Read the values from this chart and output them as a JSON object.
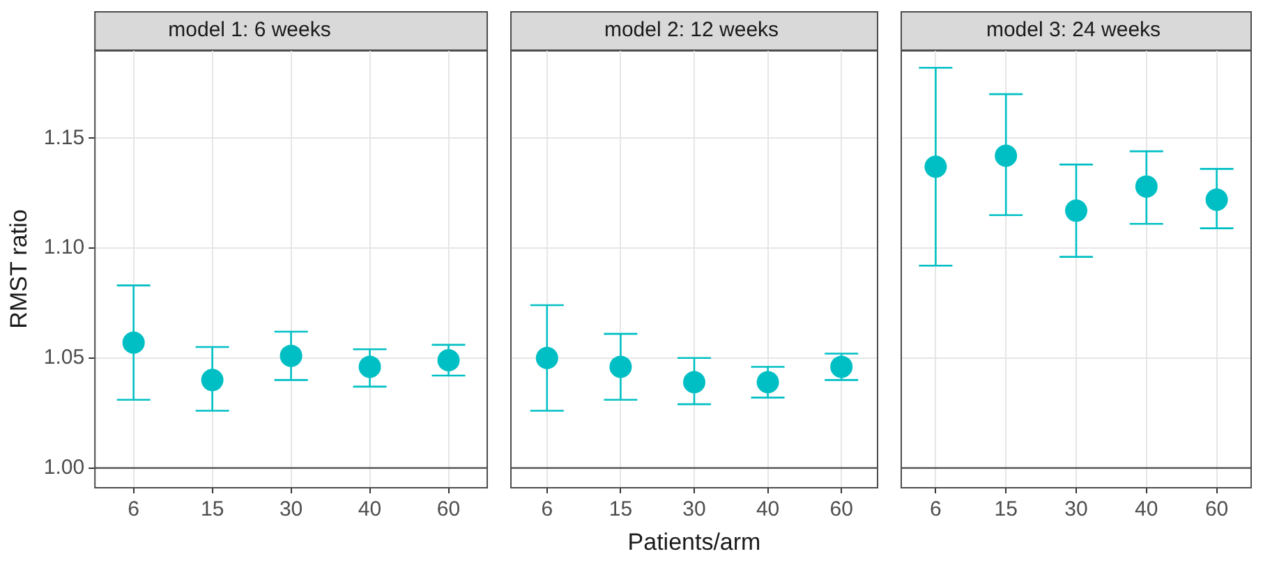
{
  "chart_data": [
    {
      "type": "scatter",
      "title": "model 1: 6 weeks",
      "ylabel": "RMST ratio",
      "categories": [
        "6",
        "15",
        "30",
        "40",
        "60"
      ],
      "series": [
        {
          "color": "#00bfc4",
          "values": [
            1.057,
            1.04,
            1.051,
            1.046,
            1.049
          ],
          "errors": [
            [
              1.031,
              1.083
            ],
            [
              1.026,
              1.055
            ],
            [
              1.04,
              1.062
            ],
            [
              1.037,
              1.054
            ],
            [
              1.042,
              1.056
            ]
          ]
        }
      ],
      "ylim": [
        0.991,
        1.19
      ],
      "yticks": [
        {
          "value": 1.0,
          "label": "1.00"
        },
        {
          "value": 1.05,
          "label": "1.05"
        },
        {
          "value": 1.1,
          "label": "1.10"
        },
        {
          "value": 1.15,
          "label": "1.15"
        }
      ],
      "ref_lines": [
        {
          "axis": "y",
          "value": 1,
          "color": "#4d4d4d"
        }
      ],
      "grid": true,
      "marker": "circle",
      "legend": false
    },
    {
      "type": "scatter",
      "title": "model 2: 12 weeks",
      "xlabel": "Patients/arm",
      "categories": [
        "6",
        "15",
        "30",
        "40",
        "60"
      ],
      "series": [
        {
          "color": "#00bfc4",
          "values": [
            1.05,
            1.046,
            1.039,
            1.039,
            1.046
          ],
          "errors": [
            [
              1.026,
              1.074
            ],
            [
              1.031,
              1.061
            ],
            [
              1.029,
              1.05
            ],
            [
              1.032,
              1.046
            ],
            [
              1.04,
              1.052
            ]
          ]
        }
      ],
      "ylim": [
        0.991,
        1.19
      ],
      "yticks": [
        1,
        1.05,
        1.1,
        1.15
      ],
      "ref_lines": [
        {
          "axis": "y",
          "value": 1,
          "color": "#4d4d4d"
        }
      ],
      "grid": true,
      "marker": "circle",
      "legend": false,
      "tick_labels": "x"
    },
    {
      "type": "scatter",
      "title": "model 3: 24 weeks",
      "categories": [
        "6",
        "15",
        "30",
        "40",
        "60"
      ],
      "series": [
        {
          "color": "#00bfc4",
          "values": [
            1.137,
            1.142,
            1.117,
            1.128,
            1.122
          ],
          "errors": [
            [
              1.092,
              1.182
            ],
            [
              1.115,
              1.17
            ],
            [
              1.096,
              1.138
            ],
            [
              1.111,
              1.144
            ],
            [
              1.109,
              1.136
            ]
          ]
        }
      ],
      "ylim": [
        0.991,
        1.19
      ],
      "yticks": [
        1,
        1.05,
        1.1,
        1.15
      ],
      "ref_lines": [
        {
          "axis": "y",
          "value": 1,
          "color": "#4d4d4d"
        }
      ],
      "grid": true,
      "marker": "circle",
      "legend": false,
      "tick_labels": "x"
    }
  ]
}
